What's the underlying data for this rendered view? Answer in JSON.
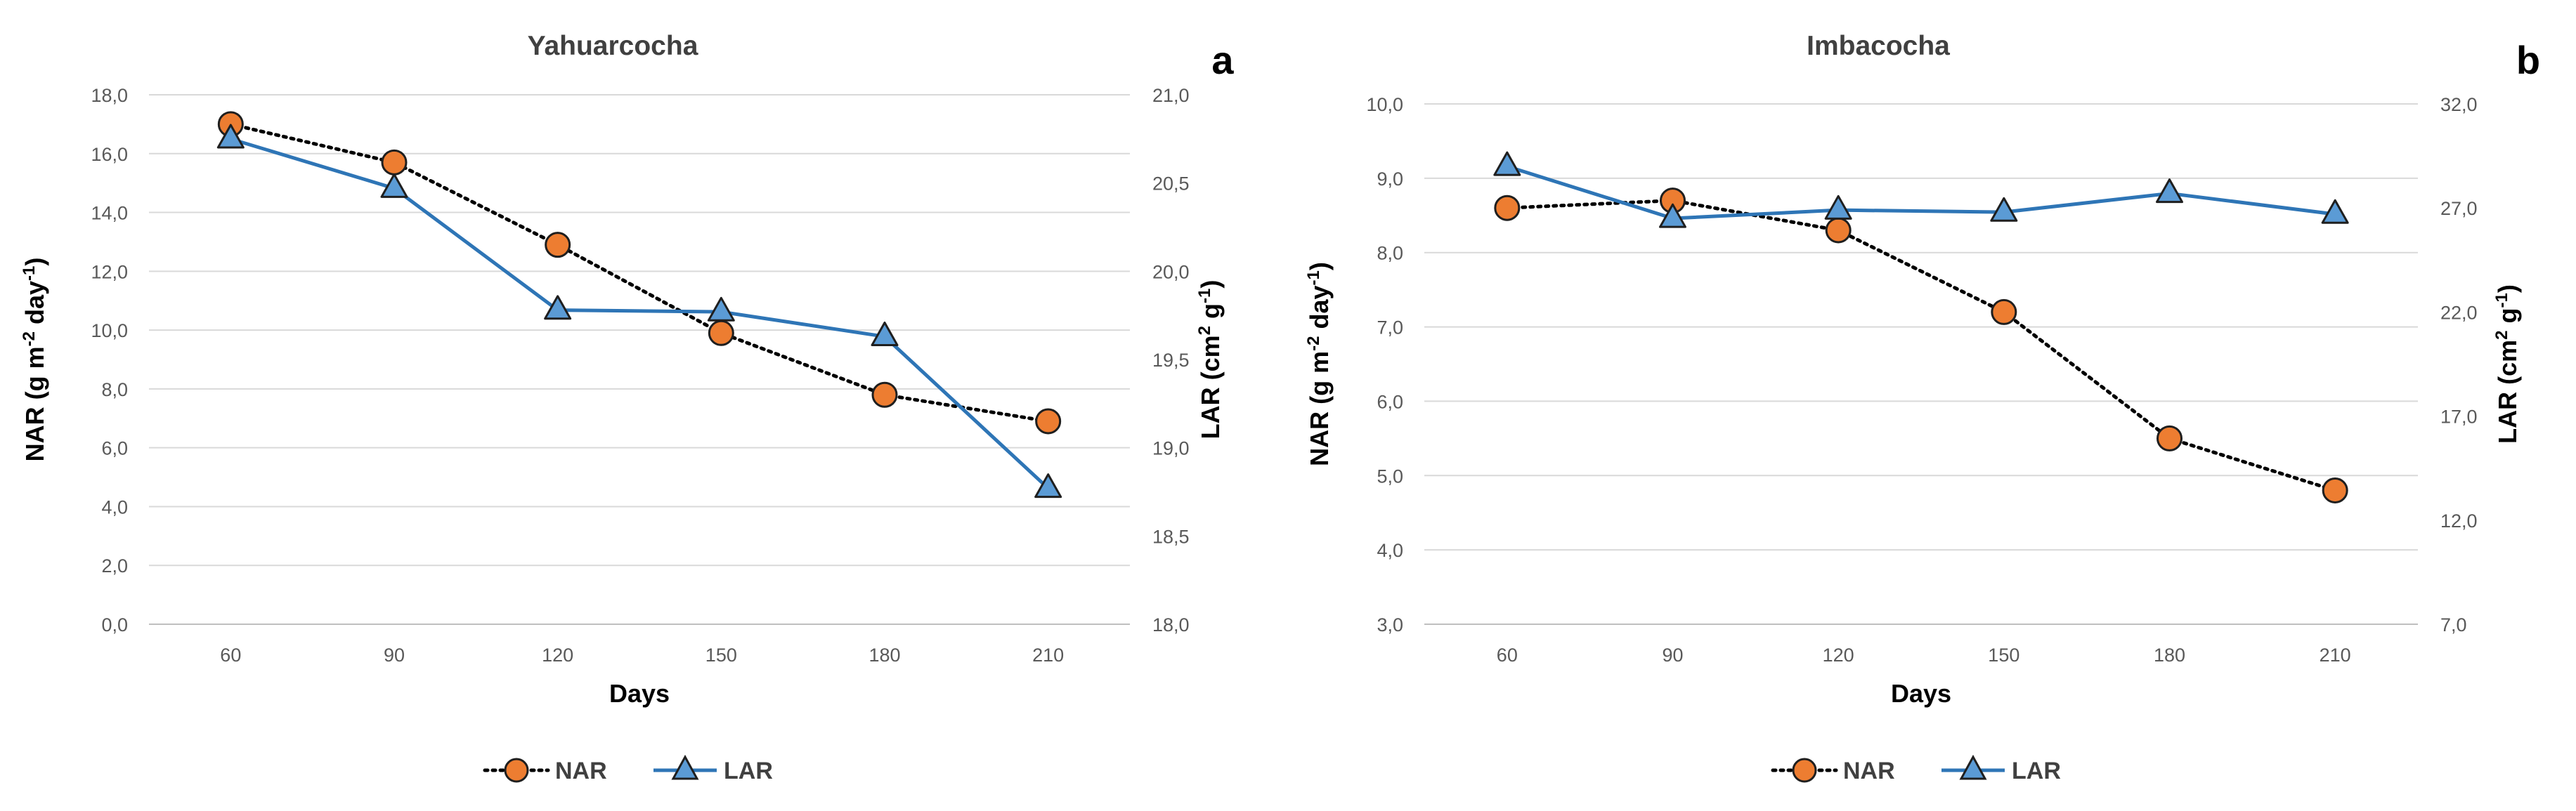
{
  "chart_data": [
    {
      "type": "line",
      "panel_label": "a",
      "title": "Yahuarcocha",
      "xlabel": "Days",
      "ylabel": "NAR (g m",
      "ylabel_sup1": "-2",
      "ylabel_mid": " day",
      "ylabel_sup2": "-1",
      "ylabel_end": ")",
      "y2label": "LAR (cm",
      "y2label_sup1": "2",
      "y2label_mid": " g",
      "y2label_sup2": "-1",
      "y2label_end": ")",
      "categories": [
        "60",
        "90",
        "120",
        "150",
        "180",
        "210"
      ],
      "ylim": [
        0,
        18
      ],
      "y_ticks": [
        "0,0",
        "2,0",
        "4,0",
        "6,0",
        "8,0",
        "10,0",
        "12,0",
        "14,0",
        "16,0",
        "18,0"
      ],
      "y2lim": [
        18,
        21
      ],
      "y2_ticks": [
        "18,0",
        "18,5",
        "19,0",
        "19,5",
        "20,0",
        "20,5",
        "21,0"
      ],
      "legend": [
        "NAR",
        "LAR"
      ],
      "legend_position": "bottom",
      "series": [
        {
          "name": "NAR",
          "axis": "left",
          "values": [
            17.0,
            15.7,
            12.9,
            9.9,
            7.8,
            6.9
          ],
          "color": "#ed7d31",
          "line_color": "#000000",
          "style": "dotted",
          "marker": "circle"
        },
        {
          "name": "LAR",
          "axis": "right",
          "values": [
            20.75,
            20.47,
            19.78,
            19.77,
            19.63,
            18.77
          ],
          "color": "#5b9bd5",
          "line_color": "#2e75b6",
          "style": "solid",
          "marker": "triangle"
        }
      ]
    },
    {
      "type": "line",
      "panel_label": "b",
      "title": "Imbacocha",
      "xlabel": "Days",
      "ylabel": "NAR (g m",
      "ylabel_sup1": "-2",
      "ylabel_mid": " day",
      "ylabel_sup2": "-1",
      "ylabel_end": ")",
      "y2label": "LAR (cm",
      "y2label_sup1": "2",
      "y2label_mid": " g",
      "y2label_sup2": "-1",
      "y2label_end": ")",
      "categories": [
        "60",
        "90",
        "120",
        "150",
        "180",
        "210"
      ],
      "ylim": [
        3,
        10
      ],
      "y_ticks": [
        "3,0",
        "4,0",
        "5,0",
        "6,0",
        "7,0",
        "8,0",
        "9,0",
        "10,0"
      ],
      "y2lim": [
        7,
        32
      ],
      "y2_ticks": [
        "7,0",
        "12,0",
        "17,0",
        "22,0",
        "27,0",
        "32,0"
      ],
      "legend": [
        "NAR",
        "LAR"
      ],
      "legend_position": "bottom",
      "series": [
        {
          "name": "NAR",
          "axis": "left",
          "values": [
            8.6,
            8.7,
            8.3,
            7.2,
            5.5,
            4.8
          ],
          "color": "#ed7d31",
          "line_color": "#000000",
          "style": "dotted",
          "marker": "circle"
        },
        {
          "name": "LAR",
          "axis": "right",
          "values": [
            29.0,
            26.5,
            26.9,
            26.8,
            27.7,
            26.7
          ],
          "color": "#5b9bd5",
          "line_color": "#2e75b6",
          "style": "solid",
          "marker": "triangle"
        }
      ]
    }
  ]
}
